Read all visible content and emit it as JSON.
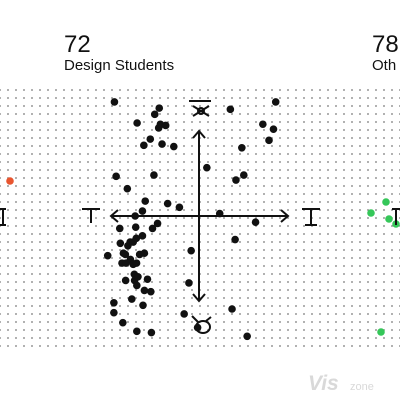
{
  "panels": [
    {
      "id": "left",
      "count": "",
      "title": "",
      "accent": "#e8552f"
    },
    {
      "id": "center",
      "count": "72",
      "title": "Design Students",
      "accent": "#111111"
    },
    {
      "id": "right",
      "count": "78",
      "title": "Oth",
      "accent": "#35c759"
    }
  ],
  "watermark": {
    "brand": "Vis",
    "suffix": "zone"
  },
  "icons": {
    "top": "toolbox-icon",
    "bottom": "bell-pepper-icon",
    "left": "hammer-icon",
    "right": "hammer-icon"
  },
  "chart_data": {
    "type": "scatter",
    "series": [
      {
        "panel": "center",
        "color": "#111111",
        "points": [
          [
            -0.76,
            -0.32
          ],
          [
            -0.54,
            -0.7
          ],
          [
            -0.54,
            -0.78
          ],
          [
            -0.52,
            0.92
          ],
          [
            -0.46,
            0.32
          ],
          [
            -0.33,
            -0.1
          ],
          [
            -0.31,
            -0.22
          ],
          [
            -0.25,
            -0.38
          ],
          [
            -0.22,
            -0.86
          ],
          [
            -0.2,
            -0.3
          ],
          [
            -0.13,
            -0.31
          ],
          [
            -0.12,
            -0.52
          ],
          [
            -0.11,
            -0.38
          ],
          [
            -0.06,
            0.22
          ],
          [
            -0.04,
            -0.24
          ],
          [
            0.04,
            -0.21
          ],
          [
            0.05,
            -0.35
          ],
          [
            0.1,
            -0.67
          ],
          [
            0.15,
            -0.21
          ],
          [
            0.15,
            -0.39
          ],
          [
            0.19,
            -0.47
          ],
          [
            0.2,
            -0.52
          ],
          [
            0.22,
            0.0
          ],
          [
            0.24,
            -0.09
          ],
          [
            0.26,
            -0.18
          ],
          [
            0.27,
            -0.38
          ],
          [
            0.28,
            -0.56
          ],
          [
            0.28,
            -0.93
          ],
          [
            0.29,
            0.75
          ],
          [
            0.32,
            -0.49
          ],
          [
            0.38,
            -0.31
          ],
          [
            0.48,
            0.04
          ],
          [
            0.48,
            -0.16
          ],
          [
            0.5,
            -0.72
          ],
          [
            0.53,
            0.57
          ],
          [
            0.55,
            -0.3
          ],
          [
            0.55,
            -0.6
          ],
          [
            0.58,
            0.12
          ],
          [
            0.66,
            -0.51
          ],
          [
            0.76,
            0.62
          ],
          [
            0.78,
            -0.61
          ],
          [
            0.8,
            -0.94
          ],
          [
            0.84,
            -0.1
          ],
          [
            0.89,
            0.33
          ],
          [
            0.92,
            0.82
          ],
          [
            1.02,
            -0.06
          ],
          [
            1.06,
            0.71
          ],
          [
            1.08,
            0.87
          ],
          [
            1.12,
            0.74
          ],
          [
            1.18,
            0.58
          ],
          [
            1.31,
            0.73
          ],
          [
            1.38,
            0.1
          ],
          [
            1.6,
            0.56
          ],
          [
            1.8,
            0.07
          ],
          [
            1.97,
            -0.79
          ],
          [
            2.14,
            -0.54
          ],
          [
            2.22,
            -0.28
          ],
          [
            2.45,
            -0.9
          ],
          [
            2.78,
            0.39
          ],
          [
            3.24,
            0.02
          ],
          [
            3.62,
            0.86
          ],
          [
            3.68,
            -0.75
          ],
          [
            3.79,
            -0.19
          ],
          [
            3.82,
            0.29
          ],
          [
            4.03,
            0.55
          ],
          [
            4.1,
            0.33
          ],
          [
            4.22,
            -0.97
          ],
          [
            4.52,
            -0.05
          ],
          [
            4.78,
            0.74
          ],
          [
            5.0,
            0.61
          ],
          [
            5.16,
            0.7
          ],
          [
            5.24,
            0.92
          ]
        ]
      }
    ],
    "xlabel": "",
    "ylabel": "",
    "grid": true
  }
}
